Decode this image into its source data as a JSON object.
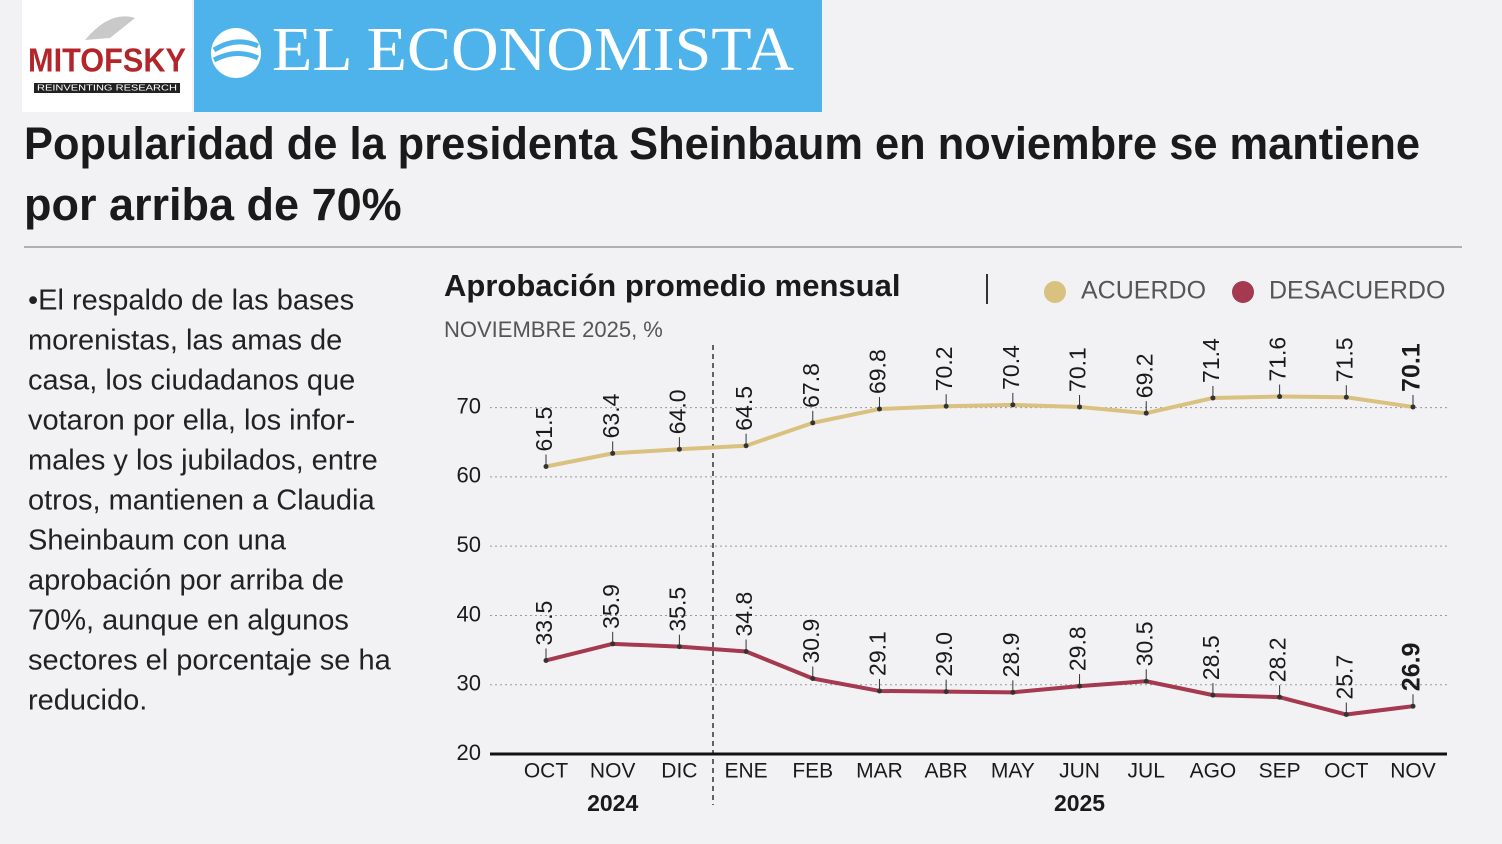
{
  "header": {
    "logo": "MITOFSKY",
    "logo_tagline": "REINVENTING RESEARCH",
    "brand": "EL ECONOMISTA"
  },
  "headline": [
    "Popularidad de la presidenta Sheinbaum en noviembre se mantiene",
    "por arriba de 70%"
  ],
  "body_text": [
    "•El respaldo de las bases",
    "morenistas, las amas de",
    "casa, los ciudadanos que",
    "votaron por ella, los infor-",
    "males y los jubilados, entre",
    "otros, mantienen a Claudia",
    "Sheinbaum con una",
    "aprobación por arriba de",
    "70%, aunque en algunos",
    "sectores el porcentaje se ha",
    "reducido."
  ],
  "chart_data": {
    "type": "line",
    "title": "Aprobación promedio mensual",
    "subtitle": "NOVIEMBRE 2025, %",
    "categories": [
      "OCT",
      "NOV",
      "DIC",
      "ENE",
      "FEB",
      "MAR",
      "ABR",
      "MAY",
      "JUN",
      "JUL",
      "AGO",
      "SEP",
      "OCT",
      "NOV"
    ],
    "x_groups": [
      {
        "label": "2024",
        "count": 3
      },
      {
        "label": "2025",
        "count": 11
      }
    ],
    "series": [
      {
        "name": "ACUERDO",
        "color": "#d9c17f",
        "values": [
          61.5,
          63.4,
          64.0,
          64.5,
          67.8,
          69.8,
          70.2,
          70.4,
          70.1,
          69.2,
          71.4,
          71.6,
          71.5,
          70.1
        ],
        "value_labels": [
          "61.5",
          "63.4",
          "64.0",
          "64.5",
          "67.8",
          "69.8",
          "70.2",
          "70.4",
          "70.1",
          "69.2",
          "71.4",
          "71.6",
          "71.5",
          "70.1"
        ]
      },
      {
        "name": "DESACUERDO",
        "color": "#a5394f",
        "values": [
          33.5,
          35.9,
          35.5,
          34.8,
          30.9,
          29.1,
          29.0,
          28.9,
          29.8,
          30.5,
          28.5,
          28.2,
          25.7,
          26.9
        ],
        "value_labels": [
          "33.5",
          "35.9",
          "35.5",
          "34.8",
          "30.9",
          "29.1",
          "29.0",
          "28.9",
          "29.8",
          "30.5",
          "28.5",
          "28.2",
          "25.7",
          "26.9"
        ]
      }
    ],
    "ylim": [
      20,
      75
    ],
    "yticks": [
      20,
      30,
      40,
      50,
      60,
      70
    ],
    "grid": true,
    "highlight_last": true
  }
}
